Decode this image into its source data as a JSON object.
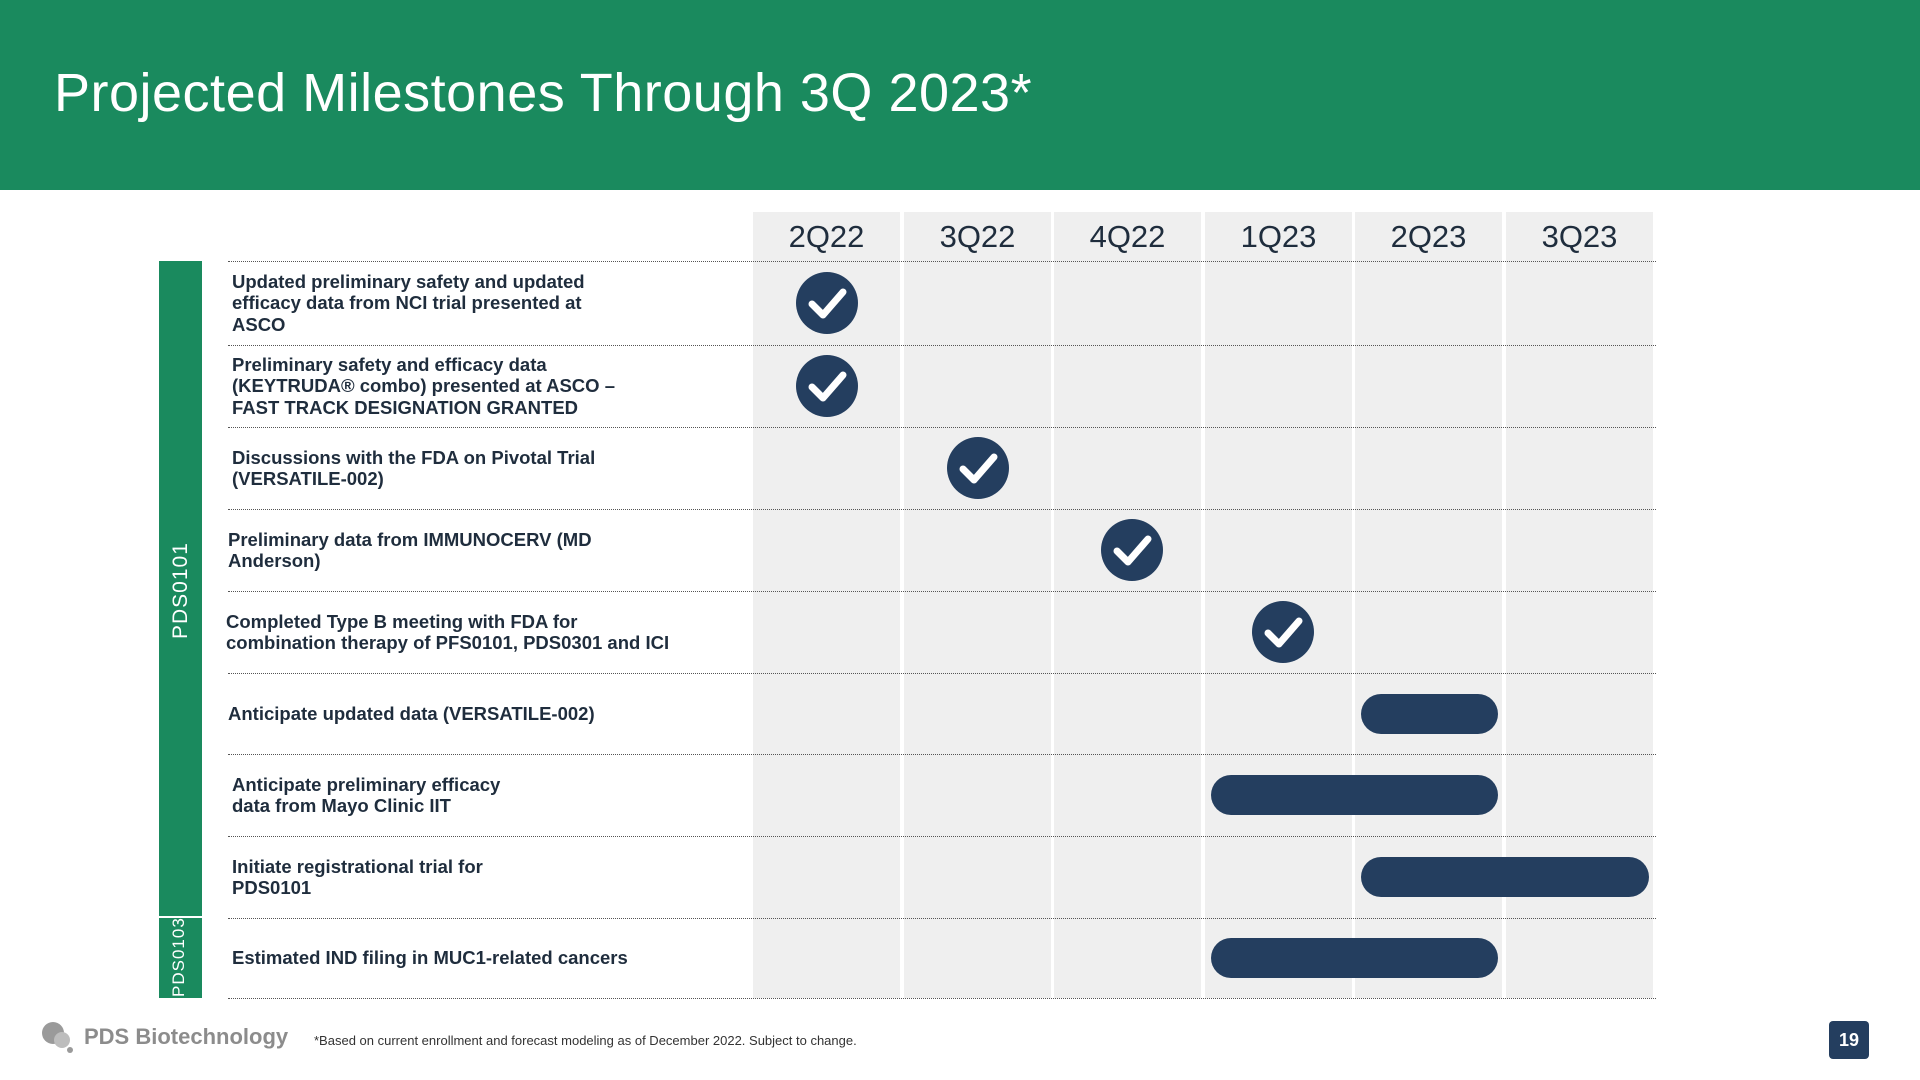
{
  "header": {
    "title": "Projected Milestones Through 3Q 2023*"
  },
  "timeline": {
    "quarters": [
      "2Q22",
      "3Q22",
      "4Q22",
      "1Q23",
      "2Q23",
      "3Q23"
    ]
  },
  "groups": [
    {
      "label": "PDS0101"
    },
    {
      "label": "PDS0103"
    }
  ],
  "milestones": [
    {
      "lines": [
        "Updated preliminary safety and updated",
        "efficacy data from NCI trial presented at",
        "ASCO"
      ],
      "status": "completed",
      "quarter": "2Q22"
    },
    {
      "lines": [
        "Preliminary safety and efficacy data",
        "(KEYTRUDA® combo) presented at ASCO –",
        "FAST TRACK DESIGNATION GRANTED"
      ],
      "status": "completed",
      "quarter": "2Q22"
    },
    {
      "lines": [
        "Discussions with the FDA on Pivotal Trial",
        "(VERSATILE-002)"
      ],
      "status": "completed",
      "quarter": "3Q22"
    },
    {
      "lines": [
        "Preliminary data from IMMUNOCERV (MD",
        "Anderson)"
      ],
      "status": "completed",
      "quarter": "4Q22"
    },
    {
      "lines": [
        "Completed Type B meeting with FDA for",
        "combination therapy of PFS0101, PDS0301 and ICI"
      ],
      "status": "completed",
      "quarter": "1Q23"
    },
    {
      "lines": [
        "Anticipate updated data (VERSATILE-002)"
      ],
      "status": "anticipated",
      "start": "2Q23",
      "end": "2Q23"
    },
    {
      "lines": [
        "Anticipate preliminary efficacy",
        "data from Mayo Clinic IIT"
      ],
      "status": "anticipated",
      "start": "1Q23",
      "end": "2Q23"
    },
    {
      "lines": [
        "Initiate registrational trial for",
        "PDS0101"
      ],
      "status": "anticipated",
      "start": "2Q23",
      "end": "3Q23"
    },
    {
      "lines": [
        "Estimated IND filing in MUC1-related cancers"
      ],
      "status": "anticipated",
      "start": "1Q23",
      "end": "2Q23"
    }
  ],
  "footer": {
    "logo_text": "PDS Biotechnology",
    "footnote": "*Based on current enrollment and forecast modeling as of December 2022. Subject to change.",
    "page_number": "19"
  },
  "colors": {
    "brand_green": "#1a8a5e",
    "navy": "#243e5f",
    "column_bg": "#efefef"
  }
}
